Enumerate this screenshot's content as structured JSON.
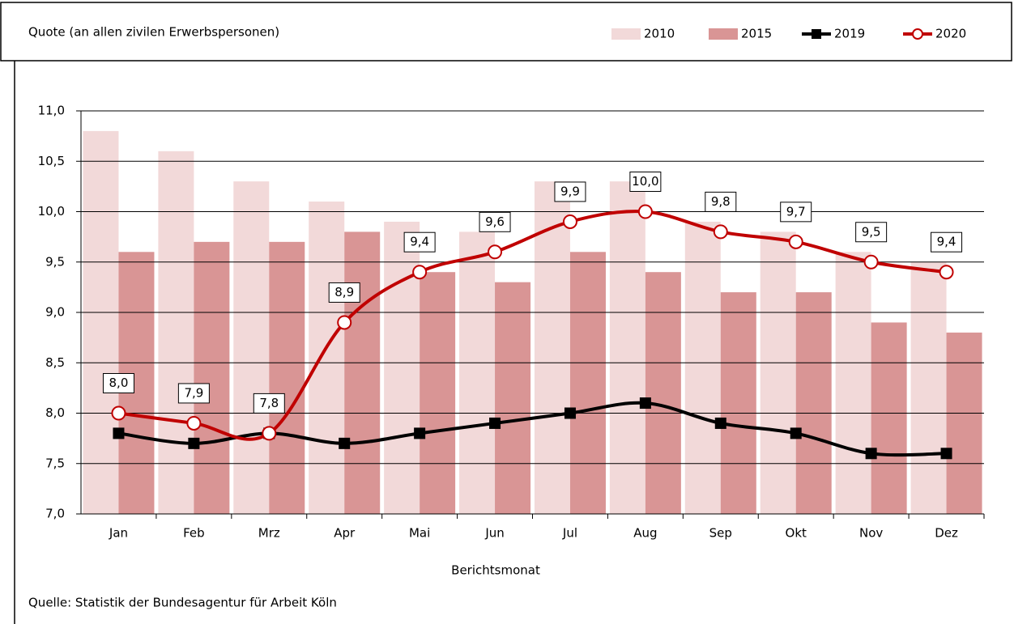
{
  "chart_data": {
    "type": "bar_line",
    "y_axis_title": "Quote (an allen zivilen Erwerbspersonen)",
    "x_axis_title": "Berichtsmonat",
    "source": "Quelle: Statistik der Bundesagentur für Arbeit Köln",
    "categories": [
      "Jan",
      "Feb",
      "Mrz",
      "Apr",
      "Mai",
      "Jun",
      "Jul",
      "Aug",
      "Sep",
      "Okt",
      "Nov",
      "Dez"
    ],
    "series": [
      {
        "name": "2010",
        "type": "bar",
        "color": "#f2d9d9",
        "values": [
          10.8,
          10.6,
          10.3,
          10.1,
          9.9,
          9.8,
          10.3,
          10.3,
          9.9,
          9.8,
          9.6,
          9.5
        ]
      },
      {
        "name": "2015",
        "type": "bar",
        "color": "#d99595",
        "values": [
          9.6,
          9.7,
          9.7,
          9.8,
          9.4,
          9.3,
          9.6,
          9.4,
          9.2,
          9.2,
          8.9,
          8.8
        ]
      },
      {
        "name": "2019",
        "type": "line",
        "color": "#000000",
        "marker": "square",
        "values": [
          7.8,
          7.7,
          7.8,
          7.7,
          7.8,
          7.9,
          8.0,
          8.1,
          7.9,
          7.8,
          7.6,
          7.6
        ]
      },
      {
        "name": "2020",
        "type": "line",
        "color": "#c00000",
        "marker": "circle",
        "values": [
          8.0,
          7.9,
          7.8,
          8.9,
          9.4,
          9.6,
          9.9,
          10.0,
          9.8,
          9.7,
          9.5,
          9.4
        ],
        "value_labels": [
          "8,0",
          "7,9",
          "7,8",
          "8,9",
          "9,4",
          "9,6",
          "9,9",
          "10,0",
          "9,8",
          "9,7",
          "9,5",
          "9,4"
        ]
      }
    ],
    "ylim": [
      7.0,
      11.0
    ],
    "yticks": [
      {
        "value": 7.0,
        "label": "7,0"
      },
      {
        "value": 7.5,
        "label": "7,5"
      },
      {
        "value": 8.0,
        "label": "8,0"
      },
      {
        "value": 8.5,
        "label": "8,5"
      },
      {
        "value": 9.0,
        "label": "9,0"
      },
      {
        "value": 9.5,
        "label": "9,5"
      },
      {
        "value": 10.0,
        "label": "10,0"
      },
      {
        "value": 10.5,
        "label": "10,5"
      },
      {
        "value": 11.0,
        "label": "11,0"
      }
    ],
    "grid": true
  }
}
